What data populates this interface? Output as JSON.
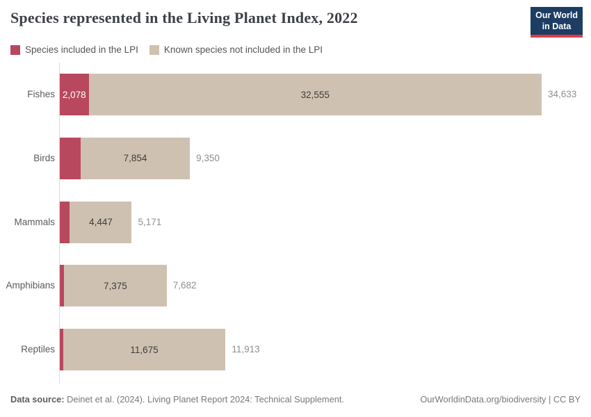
{
  "header": {
    "title": "Species represented in the Living Planet Index, 2022",
    "logo": {
      "line1": "Our World",
      "line2": "in Data"
    }
  },
  "legend": [
    {
      "label": "Species included in the LPI",
      "color": "#b8485e"
    },
    {
      "label": "Known species not included in the LPI",
      "color": "#cfc1b1"
    }
  ],
  "chart_data": {
    "type": "bar",
    "orientation": "horizontal",
    "stacked": true,
    "title": "Species represented in the Living Planet Index, 2022",
    "categories": [
      "Fishes",
      "Birds",
      "Mammals",
      "Amphibians",
      "Reptiles"
    ],
    "series": [
      {
        "name": "Species included in the LPI",
        "color": "#b8485e",
        "values": [
          2078,
          1496,
          724,
          307,
          238
        ]
      },
      {
        "name": "Known species not included in the LPI",
        "color": "#cfc1b1",
        "values": [
          32555,
          7854,
          4447,
          7375,
          11675
        ]
      }
    ],
    "totals": [
      34633,
      9350,
      5171,
      7682,
      11913
    ],
    "segment_labels_excluded": [
      "32,555",
      "7,854",
      "4,447",
      "7,375",
      "11,675"
    ],
    "segment_labels_included": [
      "2,078",
      null,
      null,
      null,
      null
    ],
    "total_labels": [
      "34,633",
      "9,350",
      "5,171",
      "7,682",
      "11,913"
    ],
    "xlim": [
      0,
      34633
    ],
    "grid": false,
    "legend_position": "top"
  },
  "footer": {
    "source_label": "Data source:",
    "source_text": " Deinet et al. (2024). Living Planet Report 2024: Technical Supplement.",
    "credit": "OurWorldinData.org/biodiversity | CC BY"
  },
  "colors": {
    "included": "#b8485e",
    "excluded": "#cfc1b1",
    "logo_bg": "#1d3d63",
    "logo_underline": "#dc3e45",
    "axis_line": "#dadada",
    "title_text": "#3d4045",
    "total_label": "#8e8e8e"
  }
}
